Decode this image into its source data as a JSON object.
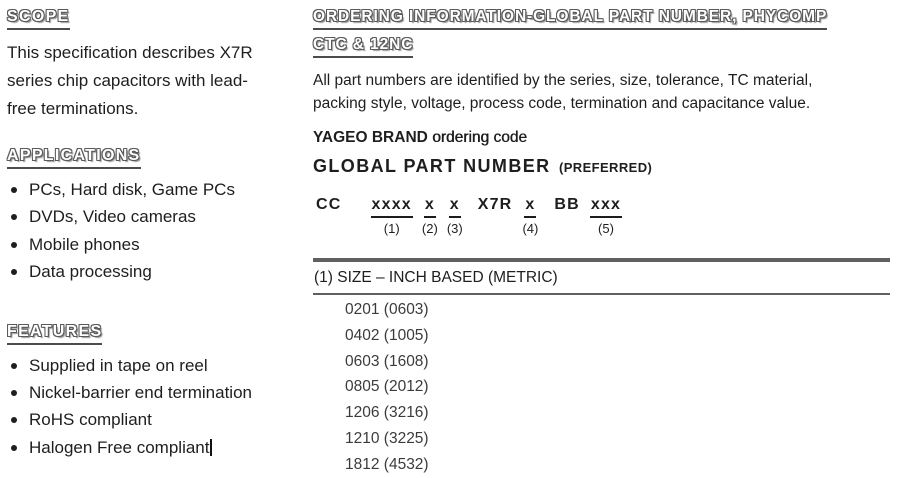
{
  "colors": {
    "background": "#ffffff",
    "text": "#1e1e1e",
    "heading_outline": "#5a5a5a",
    "rule": "#606060"
  },
  "left": {
    "scope": {
      "heading": "SCOPE",
      "text": "This specification describes X7R\nseries chip capacitors with lead-\nfree terminations."
    },
    "applications": {
      "heading": "APPLICATIONS",
      "items": [
        "PCs, Hard disk, Game PCs",
        "DVDs, Video cameras",
        "Mobile phones",
        "Data processing"
      ]
    },
    "features": {
      "heading": "FEATURES",
      "items": [
        "Supplied in tape on reel",
        "Nickel-barrier end termination",
        "RoHS compliant",
        "Halogen Free compliant"
      ]
    }
  },
  "right": {
    "ordering": {
      "heading_line1": "ORDERING INFORMATION-GLOBAL PART NUMBER, PHYCOMP",
      "heading_line2": "CTC & 12NC",
      "intro": "All part numbers are identified by the series, size, tolerance, TC material,\npacking style, voltage, process code, termination and capacitance value.",
      "brand_bold": "YAGEO BRAND",
      "brand_rest": " ordering code",
      "gpn_title": "GLOBAL PART NUMBER",
      "gpn_suffix": "(PREFERRED)"
    },
    "part_number": {
      "segments": [
        {
          "code": "CC",
          "num": ""
        },
        {
          "code": "xxxx",
          "num": "(1)"
        },
        {
          "code": "x",
          "num": "(2)"
        },
        {
          "code": "x",
          "num": "(3)"
        },
        {
          "code": "X7R",
          "num": ""
        },
        {
          "code": "x",
          "num": "(4)"
        },
        {
          "code": "BB",
          "num": ""
        },
        {
          "code": "xxx",
          "num": "(5)"
        }
      ]
    },
    "size_table": {
      "header": "(1) SIZE – INCH BASED (METRIC)",
      "rows": [
        "0201 (0603)",
        "0402 (1005)",
        "0603 (1608)",
        "0805 (2012)",
        "1206 (3216)",
        "1210 (3225)",
        "1812 (4532)"
      ]
    }
  }
}
